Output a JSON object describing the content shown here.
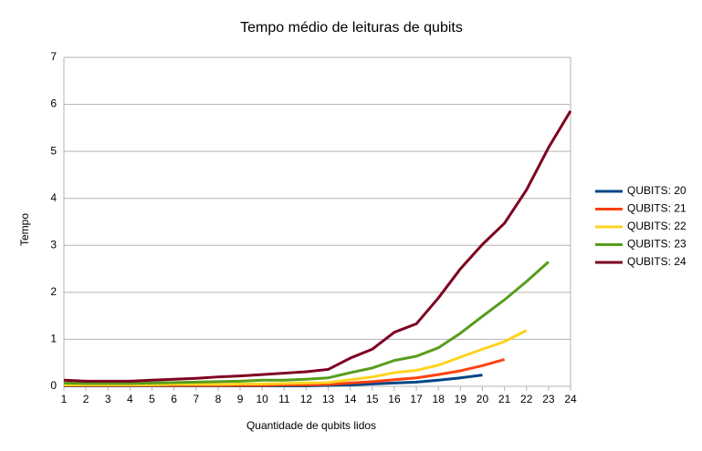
{
  "chart_data": {
    "type": "line",
    "title": "Tempo médio de leituras de qubits",
    "xlabel": "Quantidade de qubits lidos",
    "ylabel": "Tempo",
    "x": [
      1,
      2,
      3,
      4,
      5,
      6,
      7,
      8,
      9,
      10,
      11,
      12,
      13,
      14,
      15,
      16,
      17,
      18,
      19,
      20,
      21,
      22,
      23,
      24
    ],
    "xlim": [
      1,
      24
    ],
    "xticks": [
      1,
      2,
      3,
      4,
      5,
      6,
      7,
      8,
      9,
      10,
      11,
      12,
      13,
      14,
      15,
      16,
      17,
      18,
      19,
      20,
      21,
      22,
      23,
      24
    ],
    "ylim": [
      0,
      7
    ],
    "yticks": [
      0,
      1,
      2,
      3,
      4,
      5,
      6,
      7
    ],
    "grid": true,
    "legend": "right",
    "series": [
      {
        "name": "QUBITS: 20",
        "color": "#004586",
        "values": [
          0.01,
          0.01,
          0.01,
          0.01,
          0.01,
          0.01,
          0.01,
          0.01,
          0.01,
          0.01,
          0.01,
          0.01,
          0.02,
          0.03,
          0.05,
          0.07,
          0.09,
          0.13,
          0.18,
          0.24,
          null,
          null,
          null,
          null
        ]
      },
      {
        "name": "QUBITS: 21",
        "color": "#ff420e",
        "values": [
          0.02,
          0.02,
          0.02,
          0.02,
          0.02,
          0.02,
          0.02,
          0.02,
          0.02,
          0.02,
          0.03,
          0.03,
          0.04,
          0.07,
          0.1,
          0.14,
          0.18,
          0.25,
          0.33,
          0.44,
          0.57,
          null,
          null,
          null
        ]
      },
      {
        "name": "QUBITS: 22",
        "color": "#ffd320",
        "values": [
          0.03,
          0.03,
          0.03,
          0.03,
          0.03,
          0.04,
          0.04,
          0.04,
          0.05,
          0.05,
          0.06,
          0.07,
          0.08,
          0.14,
          0.2,
          0.29,
          0.34,
          0.45,
          0.62,
          0.79,
          0.95,
          1.19,
          null,
          null
        ]
      },
      {
        "name": "QUBITS: 23",
        "color": "#579d1c",
        "values": [
          0.07,
          0.06,
          0.06,
          0.06,
          0.07,
          0.08,
          0.09,
          0.1,
          0.11,
          0.13,
          0.13,
          0.15,
          0.18,
          0.29,
          0.39,
          0.55,
          0.64,
          0.82,
          1.13,
          1.49,
          1.84,
          2.23,
          2.65,
          null
        ]
      },
      {
        "name": "QUBITS: 24",
        "color": "#7e0021",
        "values": [
          0.13,
          0.11,
          0.11,
          0.11,
          0.13,
          0.15,
          0.17,
          0.2,
          0.22,
          0.25,
          0.28,
          0.31,
          0.36,
          0.6,
          0.79,
          1.15,
          1.33,
          1.88,
          2.5,
          3.02,
          3.47,
          4.18,
          5.08,
          5.86
        ]
      }
    ]
  }
}
